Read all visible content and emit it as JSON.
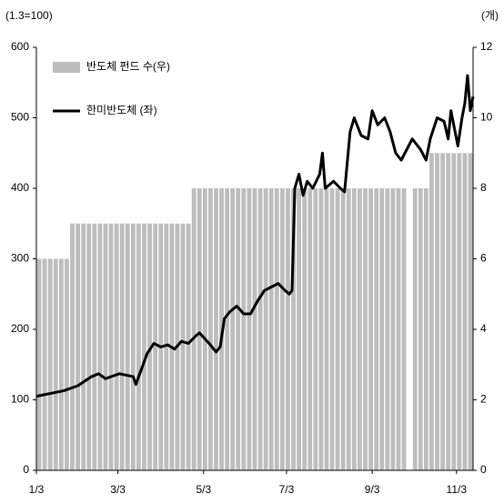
{
  "chart_data": {
    "type": "bar",
    "y_unit_label": "(1.3=100)",
    "y2_unit_label": "(개)",
    "xlim": [
      0,
      316
    ],
    "xticks": [
      {
        "value": 0,
        "label": "1/3"
      },
      {
        "value": 59,
        "label": "3/3"
      },
      {
        "value": 121,
        "label": "5/3"
      },
      {
        "value": 181,
        "label": "7/3"
      },
      {
        "value": 243,
        "label": "9/3"
      },
      {
        "value": 304,
        "label": "11/3"
      }
    ],
    "ylim": [
      0,
      600
    ],
    "yticks": [
      0,
      100,
      200,
      300,
      400,
      500,
      600
    ],
    "y2lim": [
      0,
      12
    ],
    "y2ticks": [
      0,
      2,
      4,
      6,
      8,
      10,
      12
    ],
    "legend": "top-left",
    "series": [
      {
        "name": "반도체 펀드 수(우)",
        "type": "bar",
        "axis": "y2",
        "color": "#bdbdbd",
        "x": [
          2,
          6,
          10,
          14,
          18,
          22,
          26,
          30,
          34,
          38,
          42,
          46,
          50,
          54,
          58,
          62,
          66,
          70,
          74,
          78,
          82,
          86,
          90,
          94,
          98,
          102,
          106,
          110,
          114,
          118,
          122,
          126,
          130,
          134,
          138,
          142,
          146,
          150,
          154,
          158,
          162,
          166,
          170,
          174,
          178,
          182,
          186,
          190,
          194,
          198,
          202,
          206,
          210,
          214,
          218,
          222,
          226,
          230,
          234,
          238,
          242,
          246,
          250,
          254,
          258,
          262,
          266,
          270,
          274,
          278,
          282,
          286,
          290,
          294,
          298,
          302,
          306,
          310,
          314
        ],
        "values": [
          6,
          6,
          6,
          6,
          6,
          6,
          7,
          7,
          7,
          7,
          7,
          7,
          7,
          7,
          7,
          7,
          7,
          7,
          7,
          7,
          7,
          7,
          7,
          7,
          7,
          7,
          7,
          7,
          8,
          8,
          8,
          8,
          8,
          8,
          8,
          8,
          8,
          8,
          8,
          8,
          8,
          8,
          8,
          8,
          8,
          8,
          8,
          8,
          8,
          8,
          8,
          8,
          8,
          8,
          8,
          8,
          8,
          8,
          8,
          8,
          8,
          8,
          8,
          8,
          8,
          8,
          8,
          null,
          8,
          8,
          8,
          9,
          9,
          9,
          9,
          9,
          9,
          9,
          9
        ]
      },
      {
        "name": "한미반도체 (좌)",
        "type": "line",
        "axis": "y",
        "color": "#000000",
        "x": [
          0,
          20,
          30,
          40,
          45,
          50,
          60,
          70,
          72,
          75,
          80,
          85,
          90,
          95,
          100,
          105,
          110,
          115,
          118,
          125,
          130,
          133,
          136,
          140,
          145,
          150,
          155,
          160,
          165,
          170,
          175,
          180,
          183,
          185,
          187,
          190,
          193,
          196,
          200,
          205,
          207,
          209,
          215,
          220,
          223,
          227,
          230,
          235,
          240,
          243,
          247,
          252,
          256,
          260,
          264,
          268,
          272,
          278,
          282,
          285,
          290,
          295,
          298,
          300,
          303,
          305,
          308,
          310,
          312,
          314,
          316
        ],
        "values": [
          105,
          113,
          120,
          133,
          137,
          130,
          137,
          133,
          122,
          138,
          165,
          180,
          175,
          178,
          172,
          183,
          180,
          190,
          195,
          180,
          168,
          175,
          215,
          225,
          233,
          222,
          222,
          240,
          255,
          260,
          265,
          255,
          250,
          255,
          400,
          420,
          390,
          410,
          400,
          420,
          450,
          400,
          410,
          400,
          395,
          480,
          500,
          475,
          470,
          510,
          490,
          500,
          480,
          450,
          440,
          455,
          470,
          455,
          440,
          470,
          500,
          495,
          470,
          510,
          480,
          460,
          500,
          520,
          560,
          510,
          530
        ]
      }
    ]
  }
}
